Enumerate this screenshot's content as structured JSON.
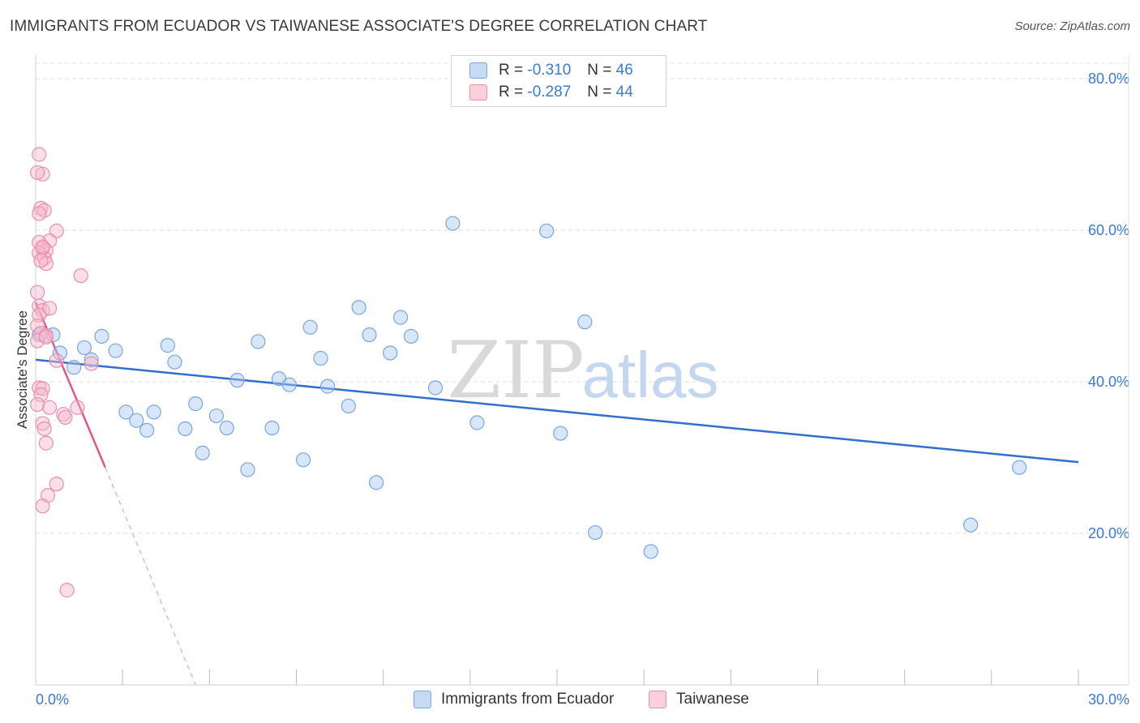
{
  "header": {
    "title": "IMMIGRANTS FROM ECUADOR VS TAIWANESE ASSOCIATE'S DEGREE CORRELATION CHART",
    "source": "Source: ZipAtlas.com"
  },
  "watermark": {
    "zip": "ZIP",
    "atlas": "atlas"
  },
  "legend": {
    "r_label": "R =",
    "n_label": "N =",
    "rows": [
      {
        "r": "-0.310",
        "n": "46",
        "color": "#a9c8f2"
      },
      {
        "r": "-0.287",
        "n": "44",
        "color": "#f7b9cc"
      }
    ]
  },
  "bottom_legend": [
    {
      "label": "Immigrants from Ecuador",
      "color": "#a9c8f2"
    },
    {
      "label": "Taiwanese",
      "color": "#f7b9cc"
    }
  ],
  "chart_data": {
    "type": "scatter",
    "title": "IMMIGRANTS FROM ECUADOR VS TAIWANESE ASSOCIATE'S DEGREE CORRELATION CHART",
    "xlabel": "",
    "ylabel": "Associate's Degree",
    "xlim": [
      0,
      30
    ],
    "ylim": [
      0,
      80
    ],
    "x_tick_labels": [
      "0.0%",
      "30.0%"
    ],
    "y_tick_labels": [
      "20.0%",
      "40.0%",
      "60.0%",
      "80.0%"
    ],
    "y_ticks": [
      20,
      40,
      60,
      80
    ],
    "grid": true,
    "legend_position": "top-center",
    "series": [
      {
        "name": "Immigrants from Ecuador",
        "color": "#a9c8f2",
        "stroke": "#7aa6e0",
        "R": -0.31,
        "N": 46,
        "trend": {
          "x": [
            0.0,
            30.0
          ],
          "y": [
            42.9,
            29.4
          ],
          "color": "#2e6fd0"
        },
        "points": [
          [
            0.1,
            46.2
          ],
          [
            0.5,
            46.2
          ],
          [
            0.7,
            43.8
          ],
          [
            1.1,
            41.9
          ],
          [
            1.4,
            44.5
          ],
          [
            1.6,
            42.9
          ],
          [
            1.9,
            46.0
          ],
          [
            2.3,
            44.1
          ],
          [
            2.6,
            36.0
          ],
          [
            2.9,
            34.9
          ],
          [
            3.2,
            33.6
          ],
          [
            3.4,
            36.0
          ],
          [
            3.8,
            44.8
          ],
          [
            4.0,
            42.6
          ],
          [
            4.3,
            33.8
          ],
          [
            4.6,
            37.1
          ],
          [
            4.8,
            30.6
          ],
          [
            5.2,
            35.5
          ],
          [
            5.5,
            33.9
          ],
          [
            5.8,
            40.2
          ],
          [
            6.1,
            28.4
          ],
          [
            6.4,
            45.3
          ],
          [
            6.8,
            33.9
          ],
          [
            7.0,
            40.4
          ],
          [
            7.3,
            39.6
          ],
          [
            7.7,
            29.7
          ],
          [
            7.9,
            47.2
          ],
          [
            8.2,
            43.1
          ],
          [
            8.4,
            39.4
          ],
          [
            9.0,
            36.8
          ],
          [
            9.3,
            49.8
          ],
          [
            9.6,
            46.2
          ],
          [
            9.8,
            26.7
          ],
          [
            10.2,
            43.8
          ],
          [
            10.5,
            48.5
          ],
          [
            10.8,
            46.0
          ],
          [
            11.5,
            39.2
          ],
          [
            12.0,
            60.9
          ],
          [
            12.7,
            34.6
          ],
          [
            14.7,
            59.9
          ],
          [
            15.1,
            33.2
          ],
          [
            15.8,
            47.9
          ],
          [
            16.1,
            20.1
          ],
          [
            17.7,
            17.6
          ],
          [
            26.9,
            21.1
          ],
          [
            28.3,
            28.7
          ]
        ]
      },
      {
        "name": "Taiwanese",
        "color": "#f7b9cc",
        "stroke": "#ea8fae",
        "R": -0.287,
        "N": 44,
        "trend": {
          "x": [
            0.0,
            2.0
          ],
          "y": [
            50.5,
            28.7
          ],
          "color": "#e0578a"
        },
        "trend_ext": {
          "x": [
            2.0,
            4.6
          ],
          "y": [
            28.7,
            0.0
          ]
        },
        "points": [
          [
            0.1,
            70.0
          ],
          [
            0.2,
            67.4
          ],
          [
            0.05,
            67.6
          ],
          [
            0.15,
            62.9
          ],
          [
            0.25,
            62.6
          ],
          [
            0.1,
            62.2
          ],
          [
            0.6,
            59.9
          ],
          [
            0.4,
            58.6
          ],
          [
            0.1,
            58.4
          ],
          [
            0.2,
            57.6
          ],
          [
            0.3,
            57.3
          ],
          [
            0.1,
            57.0
          ],
          [
            0.25,
            56.3
          ],
          [
            0.3,
            55.6
          ],
          [
            0.15,
            56.0
          ],
          [
            1.3,
            54.0
          ],
          [
            0.05,
            51.8
          ],
          [
            0.1,
            50.0
          ],
          [
            0.2,
            49.4
          ],
          [
            0.4,
            49.7
          ],
          [
            0.1,
            48.8
          ],
          [
            0.05,
            47.4
          ],
          [
            0.15,
            46.4
          ],
          [
            0.3,
            46.1
          ],
          [
            0.05,
            45.4
          ],
          [
            0.6,
            42.8
          ],
          [
            1.6,
            42.4
          ],
          [
            0.1,
            39.2
          ],
          [
            0.2,
            39.1
          ],
          [
            0.15,
            38.3
          ],
          [
            0.05,
            37.0
          ],
          [
            0.4,
            36.6
          ],
          [
            1.2,
            36.6
          ],
          [
            0.8,
            35.7
          ],
          [
            0.85,
            35.3
          ],
          [
            0.2,
            34.5
          ],
          [
            0.25,
            33.8
          ],
          [
            0.3,
            31.9
          ],
          [
            0.6,
            26.5
          ],
          [
            0.35,
            25.0
          ],
          [
            0.2,
            23.6
          ],
          [
            0.9,
            12.5
          ],
          [
            0.3,
            45.9
          ],
          [
            0.2,
            57.8
          ]
        ]
      }
    ]
  }
}
